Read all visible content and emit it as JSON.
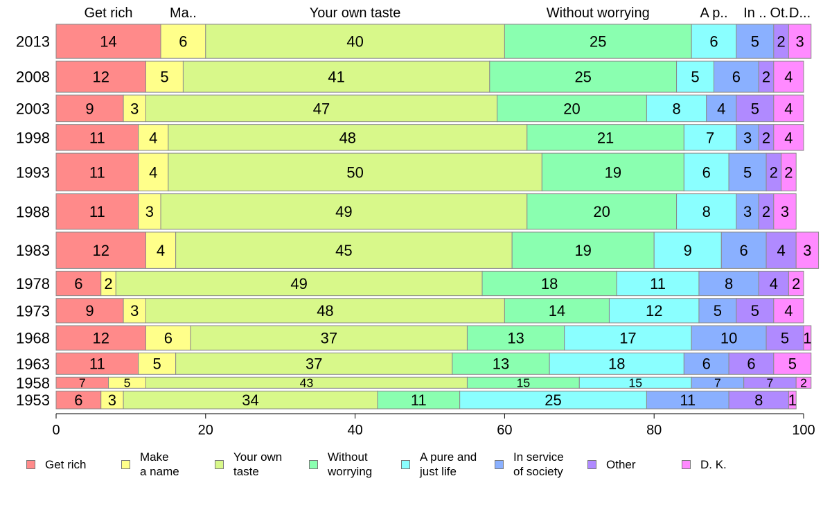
{
  "chart_data": {
    "type": "bar",
    "orientation": "horizontal",
    "stacked": true,
    "categories": [
      "2013",
      "2008",
      "2003",
      "1998",
      "1993",
      "1988",
      "1983",
      "1978",
      "1973",
      "1968",
      "1963",
      "1958",
      "1953"
    ],
    "row_weights": [
      46,
      42,
      36,
      35,
      51,
      48,
      49,
      33,
      33,
      33,
      29,
      15,
      24
    ],
    "series": [
      {
        "name": "Get rich",
        "legend_label": "Get rich",
        "header_label": "Get rich",
        "color": "#ff8a8a",
        "values": [
          14,
          12,
          9,
          11,
          11,
          11,
          12,
          6,
          9,
          12,
          11,
          7,
          6
        ]
      },
      {
        "name": "Make a name",
        "legend_label": "Make\na name",
        "header_label": "Ma..",
        "color": "#ffff8a",
        "values": [
          6,
          5,
          3,
          4,
          4,
          3,
          4,
          2,
          3,
          6,
          5,
          5,
          3
        ]
      },
      {
        "name": "Your own taste",
        "legend_label": "Your own\ntaste",
        "header_label": "Your own taste",
        "color": "#d8f88a",
        "values": [
          40,
          41,
          47,
          48,
          50,
          49,
          45,
          49,
          48,
          37,
          37,
          43,
          34
        ]
      },
      {
        "name": "Without worrying",
        "legend_label": "Without\nworrying",
        "header_label": "Without worrying",
        "color": "#8affb0",
        "values": [
          25,
          25,
          20,
          21,
          19,
          20,
          19,
          18,
          14,
          13,
          13,
          15,
          11
        ]
      },
      {
        "name": "A pure and just life",
        "legend_label": "A pure and\njust life",
        "header_label": "A p..",
        "color": "#8affff",
        "values": [
          6,
          5,
          8,
          7,
          6,
          8,
          9,
          11,
          12,
          17,
          18,
          15,
          25
        ]
      },
      {
        "name": "In service of society",
        "legend_label": "In service\nof society",
        "header_label": "In ..",
        "color": "#8ab0ff",
        "values": [
          5,
          6,
          4,
          3,
          5,
          3,
          6,
          8,
          5,
          10,
          6,
          7,
          11
        ]
      },
      {
        "name": "Other",
        "legend_label": "Other",
        "header_label": "Ot..",
        "color": "#b08aff",
        "values": [
          2,
          2,
          5,
          2,
          2,
          2,
          4,
          4,
          5,
          5,
          6,
          7,
          8
        ]
      },
      {
        "name": "D. K.",
        "legend_label": "D. K.",
        "header_label": "D...",
        "color": "#ff8aff",
        "values": [
          3,
          4,
          4,
          4,
          2,
          3,
          3,
          2,
          4,
          1,
          5,
          2,
          1
        ]
      }
    ],
    "xlim": [
      0,
      100
    ],
    "xticks": [
      "0",
      "20",
      "40",
      "60",
      "80",
      "100"
    ],
    "grid": false,
    "legend_placement": "bottom"
  }
}
